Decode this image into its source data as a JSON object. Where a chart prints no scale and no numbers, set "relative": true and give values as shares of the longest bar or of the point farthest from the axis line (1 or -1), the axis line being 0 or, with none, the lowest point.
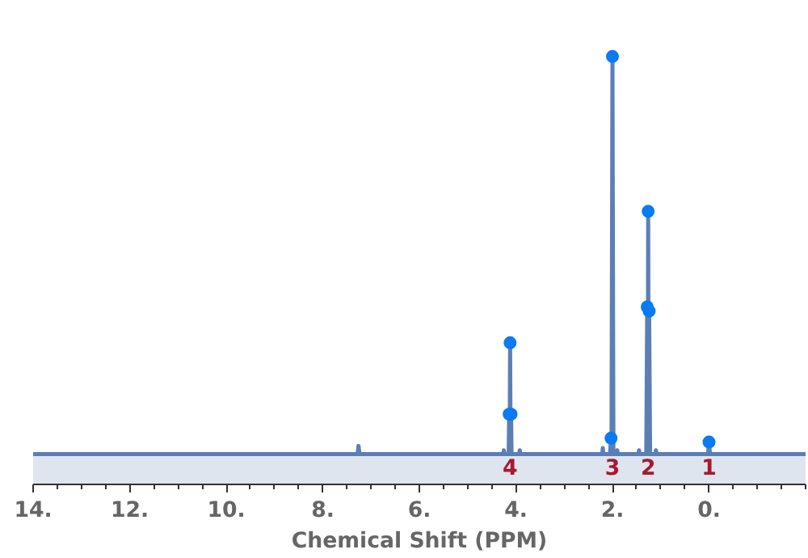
{
  "chart_data": {
    "type": "line",
    "relative": true,
    "xlabel": "Chemical Shift (PPM)",
    "xlim": [
      14,
      -2
    ],
    "xticks": [
      {
        "value": 14,
        "label": "14."
      },
      {
        "value": 12,
        "label": "12."
      },
      {
        "value": 10,
        "label": "10."
      },
      {
        "value": 8,
        "label": "8."
      },
      {
        "value": 6,
        "label": "6."
      },
      {
        "value": 4,
        "label": "4."
      },
      {
        "value": 2,
        "label": "2."
      },
      {
        "value": 0,
        "label": "0."
      }
    ],
    "series": [
      {
        "color": "#5b7fb5",
        "marker": "none",
        "x": [
          14,
          7.28,
          7.26,
          7.24,
          4.26,
          4.25,
          4.24,
          4.15,
          4.14,
          4.13,
          4.12,
          4.11,
          4.1,
          4.09,
          3.93,
          3.92,
          3.91,
          2.21,
          2.2,
          2.19,
          2.05,
          2.03,
          2.02,
          2.0,
          1.98,
          1.91,
          1.9,
          1.89,
          1.46,
          1.45,
          1.44,
          1.3,
          1.28,
          1.27,
          1.26,
          1.25,
          1.24,
          1.22,
          1.11,
          1.1,
          1.09,
          0.02,
          0.0,
          -0.02,
          -2
        ],
        "values": [
          0.071,
          0.071,
          0.09,
          0.071,
          0.071,
          0.08,
          0.071,
          0.071,
          0.164,
          0.071,
          0.331,
          0.071,
          0.164,
          0.071,
          0.071,
          0.08,
          0.071,
          0.071,
          0.085,
          0.071,
          0.071,
          0.108,
          0.071,
          1.0,
          0.071,
          0.071,
          0.08,
          0.071,
          0.071,
          0.08,
          0.071,
          0.071,
          0.415,
          0.071,
          0.638,
          0.071,
          0.405,
          0.071,
          0.071,
          0.08,
          0.071,
          0.071,
          0.099,
          0.071,
          0.071
        ]
      },
      {
        "type": "scatter",
        "color": "#0a7bf0",
        "marker": "circle",
        "x": [
          4.14,
          4.12,
          4.1,
          2.03,
          2.0,
          1.28,
          1.26,
          1.24,
          0.0
        ],
        "values": [
          0.164,
          0.331,
          0.164,
          0.108,
          1.0,
          0.415,
          0.638,
          0.405,
          0.099
        ]
      }
    ],
    "bands": [
      {
        "axis": "y",
        "from": 0,
        "to": 0.071,
        "color": "#dfe5ef"
      }
    ],
    "annotations": [
      {
        "text": "4",
        "x": 4.12,
        "y": 0.071
      },
      {
        "text": "3",
        "x": 2.0,
        "y": 0.071
      },
      {
        "text": "2",
        "x": 1.26,
        "y": 0.071
      },
      {
        "text": "1",
        "x": 0.0,
        "y": 0.071
      }
    ]
  }
}
